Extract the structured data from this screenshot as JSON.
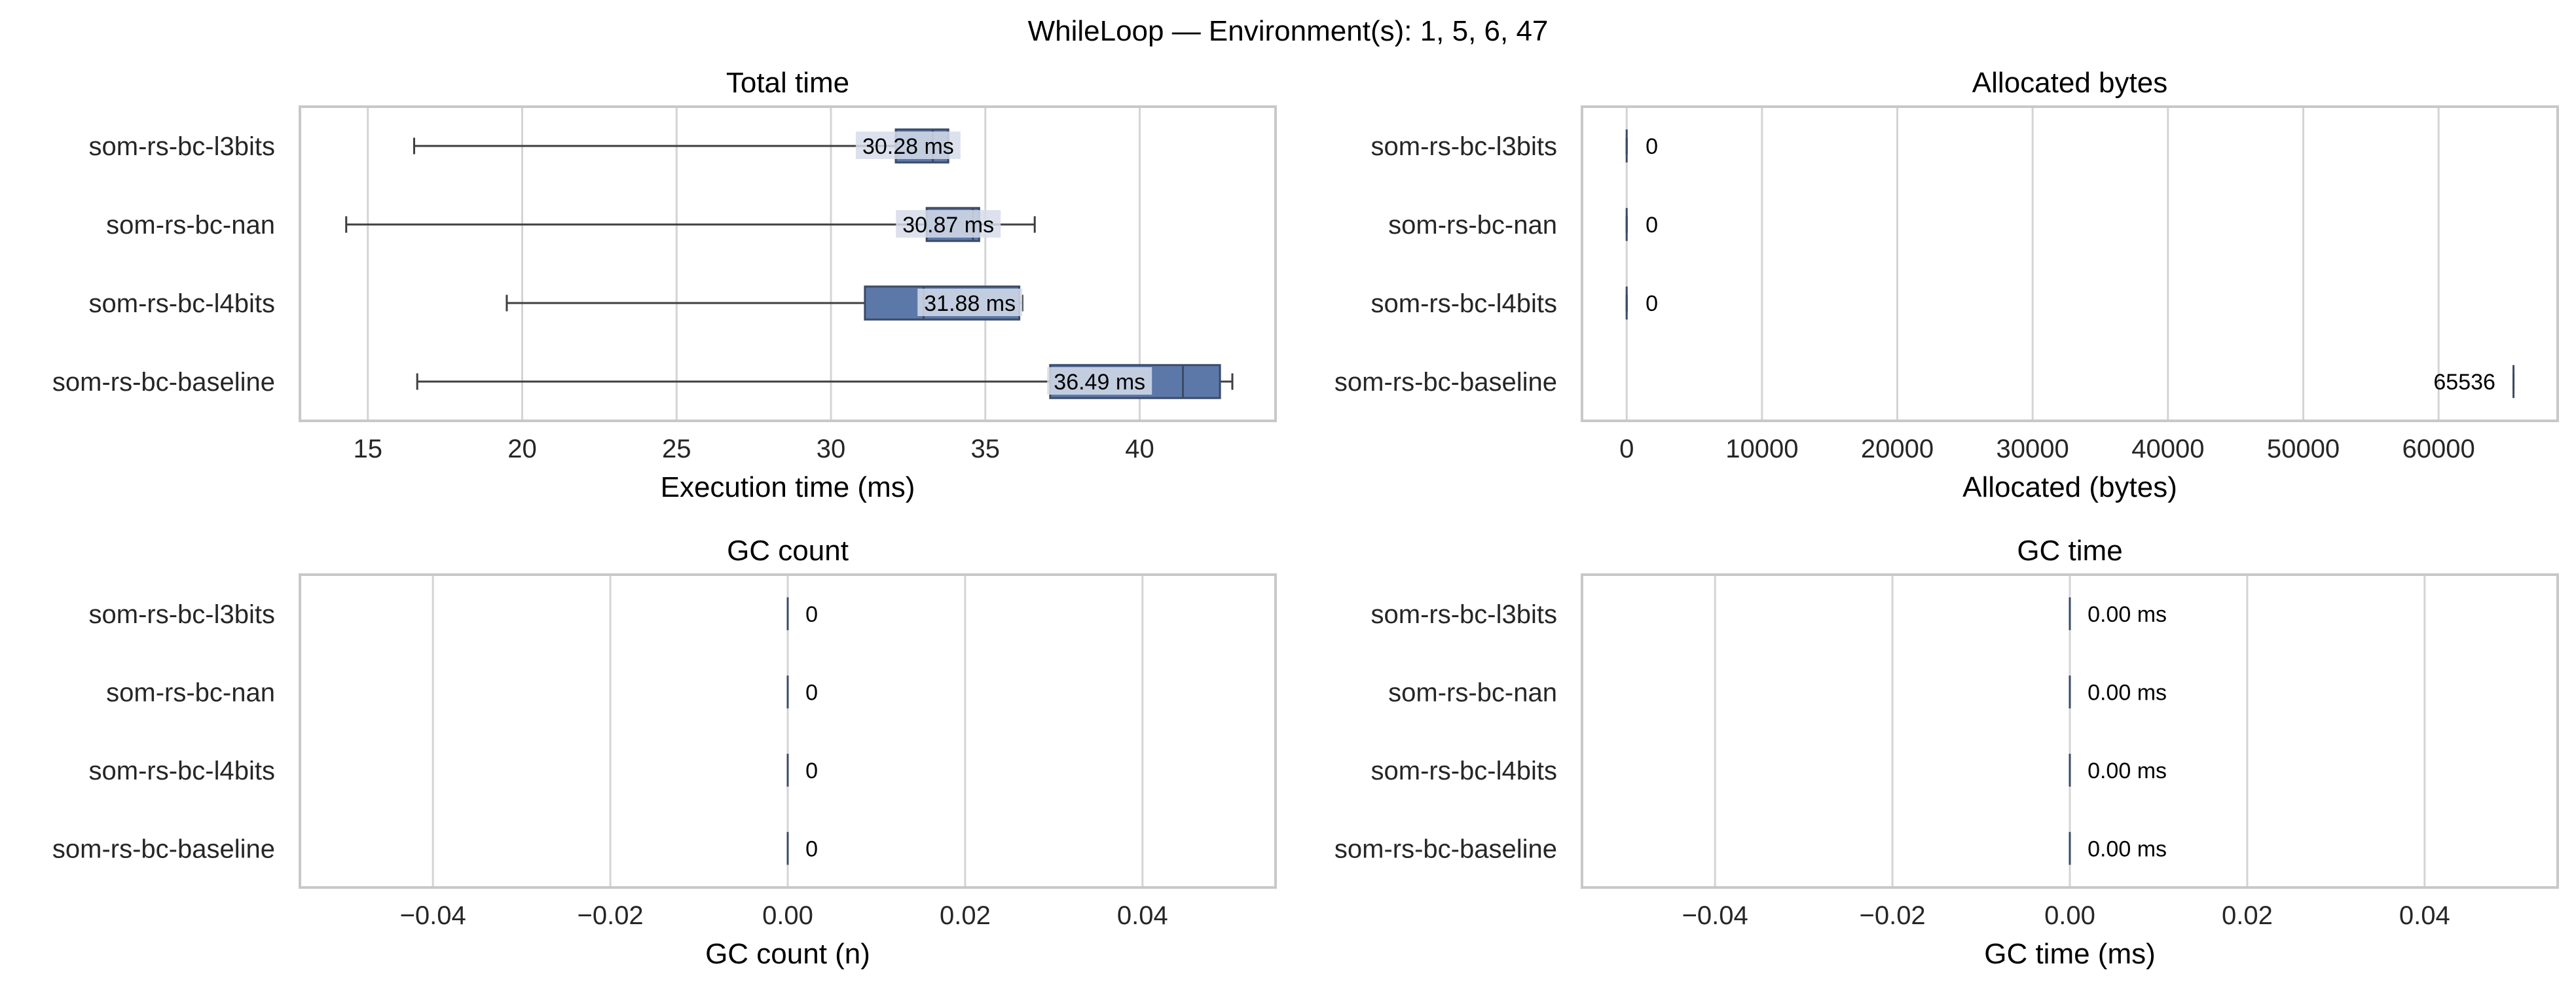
{
  "figure": {
    "title": "WhileLoop — Environment(s): 1, 5, 6, 47"
  },
  "colors": {
    "box_fill": "#5b78a8",
    "box_edge": "#3b4a66",
    "whisker": "#3f3f3f",
    "grid": "#d4d4d4",
    "spine": "#c8c8c8",
    "label_bg": "#d6dcea"
  },
  "chart_data": [
    {
      "type": "boxplot",
      "title": "Total time",
      "xlabel": "Execution time (ms)",
      "ylabel": "",
      "orientation": "horizontal",
      "grid": "vertical",
      "xlim": [
        12.8,
        44.4
      ],
      "xticks": [
        15,
        20,
        25,
        30,
        35,
        40
      ],
      "xtick_labels": [
        "15",
        "20",
        "25",
        "30",
        "35",
        "40"
      ],
      "categories": [
        "som-rs-bc-l3bits",
        "som-rs-bc-nan",
        "som-rs-bc-l4bits",
        "som-rs-bc-baseline"
      ],
      "boxes": [
        {
          "whislo": 16.5,
          "q1": 32.1,
          "med": 33.3,
          "q3": 33.8,
          "whishi": 33.8
        },
        {
          "whislo": 14.3,
          "q1": 33.1,
          "med": 34.6,
          "q3": 34.8,
          "whishi": 36.6
        },
        {
          "whislo": 19.5,
          "q1": 31.1,
          "med": 33.0,
          "q3": 36.1,
          "whishi": 36.2
        },
        {
          "whislo": 16.6,
          "q1": 37.1,
          "med": 41.4,
          "q3": 42.6,
          "whishi": 43.0
        }
      ],
      "annotations": [
        "30.28 ms",
        "30.87 ms",
        "31.88 ms",
        "36.49 ms"
      ],
      "annotation_x": [
        32.5,
        33.8,
        34.5,
        38.7
      ]
    },
    {
      "type": "boxplot",
      "title": "Allocated bytes",
      "xlabel": "Allocated (bytes)",
      "ylabel": "",
      "orientation": "horizontal",
      "grid": "vertical",
      "xlim": [
        -3300,
        68800
      ],
      "xticks": [
        0,
        10000,
        20000,
        30000,
        40000,
        50000,
        60000
      ],
      "xtick_labels": [
        "0",
        "10000",
        "20000",
        "30000",
        "40000",
        "50000",
        "60000"
      ],
      "categories": [
        "som-rs-bc-l3bits",
        "som-rs-bc-nan",
        "som-rs-bc-l4bits",
        "som-rs-bc-baseline"
      ],
      "boxes": [
        {
          "whislo": 0,
          "q1": 0,
          "med": 0,
          "q3": 0,
          "whishi": 0
        },
        {
          "whislo": 0,
          "q1": 0,
          "med": 0,
          "q3": 0,
          "whishi": 0
        },
        {
          "whislo": 0,
          "q1": 0,
          "med": 0,
          "q3": 0,
          "whishi": 0
        },
        {
          "whislo": 65536,
          "q1": 65536,
          "med": 65536,
          "q3": 65536,
          "whishi": 65536
        }
      ],
      "annotations": [
        "0",
        "0",
        "0",
        "65536"
      ],
      "annotation_x": [
        1400,
        1400,
        1400,
        64200
      ],
      "annotation_align": [
        "start",
        "start",
        "start",
        "end"
      ]
    },
    {
      "type": "boxplot",
      "title": "GC count",
      "xlabel": "GC count (n)",
      "ylabel": "",
      "orientation": "horizontal",
      "grid": "vertical",
      "xlim": [
        -0.055,
        0.055
      ],
      "xticks": [
        -0.04,
        -0.02,
        0.0,
        0.02,
        0.04
      ],
      "xtick_labels": [
        "−0.04",
        "−0.02",
        "0.00",
        "0.02",
        "0.04"
      ],
      "categories": [
        "som-rs-bc-l3bits",
        "som-rs-bc-nan",
        "som-rs-bc-l4bits",
        "som-rs-bc-baseline"
      ],
      "boxes": [
        {
          "whislo": 0,
          "q1": 0,
          "med": 0,
          "q3": 0,
          "whishi": 0
        },
        {
          "whislo": 0,
          "q1": 0,
          "med": 0,
          "q3": 0,
          "whishi": 0
        },
        {
          "whislo": 0,
          "q1": 0,
          "med": 0,
          "q3": 0,
          "whishi": 0
        },
        {
          "whislo": 0,
          "q1": 0,
          "med": 0,
          "q3": 0,
          "whishi": 0
        }
      ],
      "annotations": [
        "0",
        "0",
        "0",
        "0"
      ],
      "annotation_x": [
        0.002,
        0.002,
        0.002,
        0.002
      ]
    },
    {
      "type": "boxplot",
      "title": "GC time",
      "xlabel": "GC time (ms)",
      "ylabel": "",
      "orientation": "horizontal",
      "grid": "vertical",
      "xlim": [
        -0.055,
        0.055
      ],
      "xticks": [
        -0.04,
        -0.02,
        0.0,
        0.02,
        0.04
      ],
      "xtick_labels": [
        "−0.04",
        "−0.02",
        "0.00",
        "0.02",
        "0.04"
      ],
      "categories": [
        "som-rs-bc-l3bits",
        "som-rs-bc-nan",
        "som-rs-bc-l4bits",
        "som-rs-bc-baseline"
      ],
      "boxes": [
        {
          "whislo": 0,
          "q1": 0,
          "med": 0,
          "q3": 0,
          "whishi": 0
        },
        {
          "whislo": 0,
          "q1": 0,
          "med": 0,
          "q3": 0,
          "whishi": 0
        },
        {
          "whislo": 0,
          "q1": 0,
          "med": 0,
          "q3": 0,
          "whishi": 0
        },
        {
          "whislo": 0,
          "q1": 0,
          "med": 0,
          "q3": 0,
          "whishi": 0
        }
      ],
      "annotations": [
        "0.00 ms",
        "0.00 ms",
        "0.00 ms",
        "0.00 ms"
      ],
      "annotation_x": [
        0.002,
        0.002,
        0.002,
        0.002
      ]
    }
  ]
}
